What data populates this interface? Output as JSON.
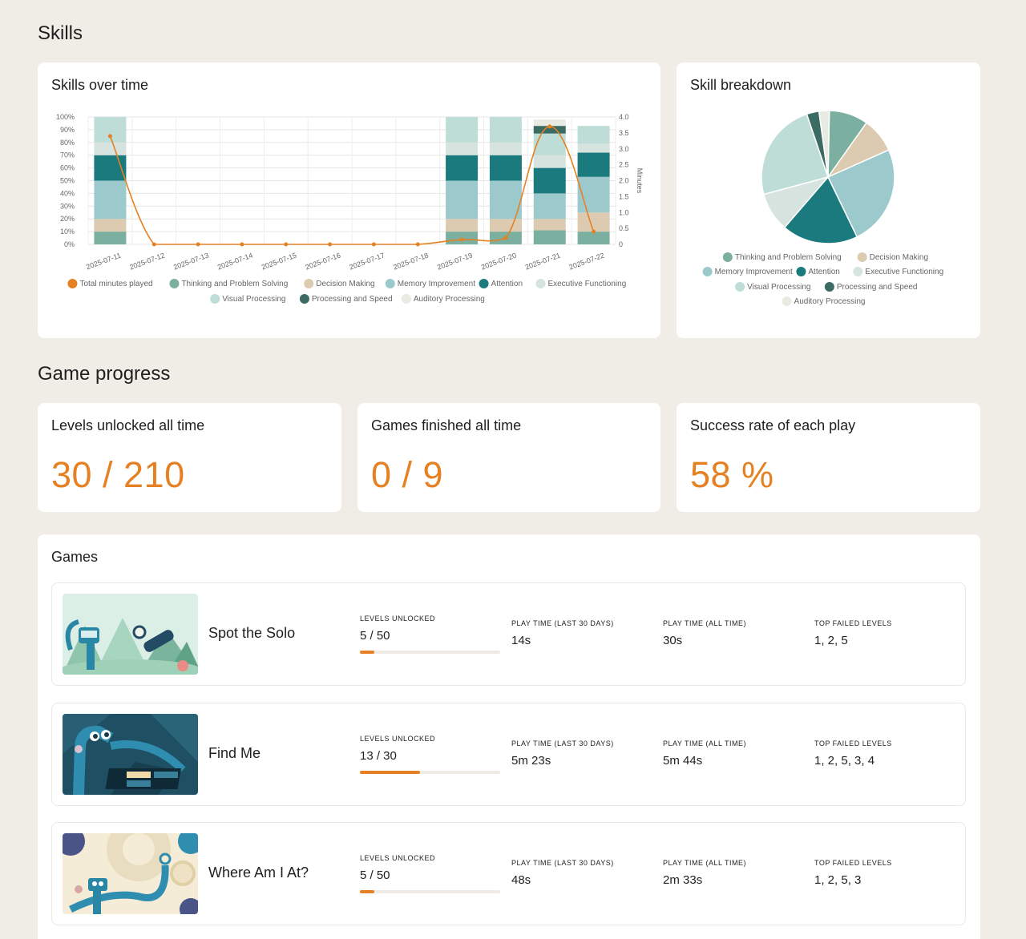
{
  "sections": {
    "skills_title": "Skills",
    "game_progress_title": "Game progress"
  },
  "skills_over_time": {
    "title": "Skills over time"
  },
  "skill_breakdown": {
    "title": "Skill breakdown"
  },
  "stats": [
    {
      "label": "Levels unlocked all time",
      "value": "30 / 210"
    },
    {
      "label": "Games finished all time",
      "value": "0 / 9"
    },
    {
      "label": "Success rate of each play",
      "value": "58 %"
    }
  ],
  "games": {
    "title": "Games",
    "labels": {
      "levels_unlocked": "LEVELS UNLOCKED",
      "play_time_30": "PLAY TIME (LAST 30 DAYS)",
      "play_time_all": "PLAY TIME (ALL TIME)",
      "top_failed": "TOP FAILED LEVELS"
    },
    "rows": [
      {
        "name": "Spot the Solo",
        "levels": "5 / 50",
        "progress": 0.1,
        "play_30": "14s",
        "play_all": "30s",
        "failed": "1, 2, 5"
      },
      {
        "name": "Find Me",
        "levels": "13 / 30",
        "progress": 0.43,
        "play_30": "5m 23s",
        "play_all": "5m 44s",
        "failed": "1, 2, 5, 3, 4"
      },
      {
        "name": "Where Am I At?",
        "levels": "5 / 50",
        "progress": 0.1,
        "play_30": "48s",
        "play_all": "2m 33s",
        "failed": "1, 2, 5, 3"
      }
    ]
  },
  "colors": {
    "accent": "#e58123",
    "thinking": "#7bb0a0",
    "decision": "#dccbb0",
    "memory": "#9ccacc",
    "attention": "#1a7a7d",
    "executive": "#d6e3de",
    "visual": "#bfddd7",
    "processing": "#3b6b63",
    "auditory": "#e8ebe2"
  },
  "chart_data": [
    {
      "type": "bar",
      "title": "Skills over time",
      "stacked": true,
      "categories": [
        "2025-07-11",
        "2025-07-12",
        "2025-07-13",
        "2025-07-14",
        "2025-07-15",
        "2025-07-16",
        "2025-07-17",
        "2025-07-18",
        "2025-07-19",
        "2025-07-20",
        "2025-07-21",
        "2025-07-22"
      ],
      "y_left": {
        "ticks": [
          "0%",
          "10%",
          "20%",
          "30%",
          "40%",
          "50%",
          "60%",
          "70%",
          "80%",
          "90%",
          "100%"
        ],
        "ylim": [
          0,
          100
        ]
      },
      "y_right": {
        "label": "Minutes",
        "ticks": [
          "0",
          "0.5",
          "1.0",
          "1.5",
          "2.0",
          "2.5",
          "3.0",
          "3.5",
          "4.0"
        ],
        "ylim": [
          0,
          4
        ]
      },
      "series": [
        {
          "name": "Thinking and Problem Solving",
          "color": "#7bb0a0",
          "values": [
            10,
            0,
            0,
            0,
            0,
            0,
            0,
            0,
            10,
            10,
            11,
            10
          ]
        },
        {
          "name": "Decision Making",
          "color": "#dccbb0",
          "values": [
            10,
            0,
            0,
            0,
            0,
            0,
            0,
            0,
            10,
            10,
            9,
            15
          ]
        },
        {
          "name": "Memory Improvement",
          "color": "#9ccacc",
          "values": [
            30,
            0,
            0,
            0,
            0,
            0,
            0,
            0,
            30,
            30,
            20,
            28
          ]
        },
        {
          "name": "Attention",
          "color": "#1a7a7d",
          "values": [
            20,
            0,
            0,
            0,
            0,
            0,
            0,
            0,
            20,
            20,
            20,
            19
          ]
        },
        {
          "name": "Executive Functioning",
          "color": "#d6e3de",
          "values": [
            10,
            0,
            0,
            0,
            0,
            0,
            0,
            0,
            10,
            10,
            10,
            7
          ]
        },
        {
          "name": "Visual Processing",
          "color": "#bfddd7",
          "values": [
            20,
            0,
            0,
            0,
            0,
            0,
            0,
            0,
            20,
            20,
            17,
            14
          ]
        },
        {
          "name": "Processing and Speed",
          "color": "#3b6b63",
          "values": [
            0,
            0,
            0,
            0,
            0,
            0,
            0,
            0,
            0,
            0,
            6,
            0
          ]
        },
        {
          "name": "Auditory Processing",
          "color": "#e8ebe2",
          "values": [
            0,
            0,
            0,
            0,
            0,
            0,
            0,
            0,
            0,
            0,
            5,
            0
          ]
        }
      ],
      "line": {
        "name": "Total minutes played",
        "color": "#e58123",
        "values": [
          3.4,
          0,
          0,
          0,
          0,
          0,
          0,
          0,
          0.15,
          0.2,
          3.7,
          0.4
        ]
      },
      "legend": [
        "Total minutes played",
        "Thinking and Problem Solving",
        "Decision Making",
        "Memory Improvement",
        "Attention",
        "Executive Functioning",
        "Visual Processing",
        "Processing and Speed",
        "Auditory Processing"
      ]
    },
    {
      "type": "pie",
      "title": "Skill breakdown",
      "slices": [
        {
          "name": "Thinking and Problem Solving",
          "value": 9.5,
          "color": "#7bb0a0"
        },
        {
          "name": "Decision Making",
          "value": 8.5,
          "color": "#dccbb0"
        },
        {
          "name": "Memory Improvement",
          "value": 24.5,
          "color": "#9ccacc"
        },
        {
          "name": "Attention",
          "value": 18.5,
          "color": "#1a7a7d"
        },
        {
          "name": "Executive Functioning",
          "value": 9.5,
          "color": "#d6e3de"
        },
        {
          "name": "Visual Processing",
          "value": 24,
          "color": "#bfddd7"
        },
        {
          "name": "Processing and Speed",
          "value": 3,
          "color": "#3b6b63"
        },
        {
          "name": "Auditory Processing",
          "value": 2.5,
          "color": "#e8ebe2"
        }
      ],
      "legend": [
        "Thinking and Problem Solving",
        "Decision Making",
        "Memory Improvement",
        "Attention",
        "Executive Functioning",
        "Visual Processing",
        "Processing and Speed",
        "Auditory Processing"
      ]
    }
  ]
}
